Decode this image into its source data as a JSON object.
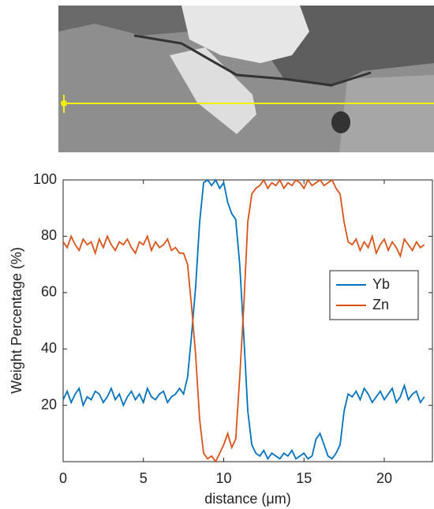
{
  "chart_data": {
    "type": "line",
    "xlabel": "distance (μm)",
    "ylabel": "Weight Percentage (%)",
    "x": [
      0,
      0.25,
      0.5,
      0.75,
      1,
      1.25,
      1.5,
      1.75,
      2,
      2.25,
      2.5,
      2.75,
      3,
      3.25,
      3.5,
      3.75,
      4,
      4.25,
      4.5,
      4.75,
      5,
      5.25,
      5.5,
      5.75,
      6,
      6.25,
      6.5,
      6.75,
      7,
      7.25,
      7.5,
      7.75,
      8,
      8.25,
      8.5,
      8.75,
      9,
      9.25,
      9.5,
      9.75,
      10,
      10.25,
      10.5,
      10.75,
      11,
      11.25,
      11.5,
      11.75,
      12,
      12.25,
      12.5,
      12.75,
      13,
      13.25,
      13.5,
      13.75,
      14,
      14.25,
      14.5,
      14.75,
      15,
      15.25,
      15.5,
      15.75,
      16,
      16.25,
      16.5,
      16.75,
      17,
      17.25,
      17.5,
      17.75,
      18,
      18.25,
      18.5,
      18.75,
      19,
      19.25,
      19.5,
      19.75,
      20,
      20.25,
      20.5,
      20.75,
      21,
      21.25,
      21.5,
      21.75,
      22,
      22.25,
      22.5
    ],
    "series": [
      {
        "name": "Yb",
        "color": "#0072bd",
        "values": [
          22,
          25,
          21,
          24,
          26,
          20,
          23,
          22,
          25,
          24,
          21,
          23,
          26,
          22,
          24,
          20,
          23,
          25,
          22,
          24,
          21,
          26,
          23,
          22,
          24,
          25,
          21,
          23,
          24,
          26,
          24,
          30,
          45,
          62,
          85,
          99,
          100,
          98,
          100,
          97,
          99,
          92,
          88,
          86,
          70,
          45,
          18,
          6,
          3,
          2,
          4,
          1,
          3,
          2,
          1,
          3,
          2,
          4,
          1,
          2,
          3,
          1,
          2,
          8,
          10,
          6,
          2,
          1,
          3,
          6,
          18,
          24,
          23,
          25,
          22,
          26,
          24,
          21,
          23,
          25,
          22,
          24,
          26,
          21,
          23,
          27,
          22,
          24,
          25,
          21,
          23
        ]
      },
      {
        "name": "Zn",
        "color": "#d95319",
        "values": [
          78,
          76,
          80,
          77,
          75,
          79,
          77,
          78,
          74,
          79,
          76,
          80,
          77,
          75,
          78,
          77,
          79,
          76,
          74,
          78,
          77,
          80,
          75,
          78,
          76,
          77,
          79,
          75,
          76,
          74,
          74,
          70,
          55,
          38,
          15,
          3,
          1,
          2,
          0,
          3,
          6,
          10,
          5,
          8,
          30,
          55,
          85,
          95,
          97,
          98,
          100,
          97,
          99,
          98,
          100,
          97,
          99,
          98,
          100,
          99,
          97,
          100,
          98,
          99,
          100,
          98,
          99,
          100,
          97,
          95,
          85,
          78,
          77,
          79,
          75,
          78,
          76,
          80,
          74,
          77,
          79,
          75,
          78,
          76,
          73,
          79,
          77,
          75,
          78,
          76,
          77
        ]
      }
    ],
    "xlim": [
      0,
      23
    ],
    "xticks": [
      0,
      5,
      10,
      15,
      20
    ],
    "ylim": [
      0,
      100
    ],
    "yticks": [
      20,
      40,
      60,
      80,
      100
    ],
    "grid": false,
    "legend_position": "east"
  }
}
